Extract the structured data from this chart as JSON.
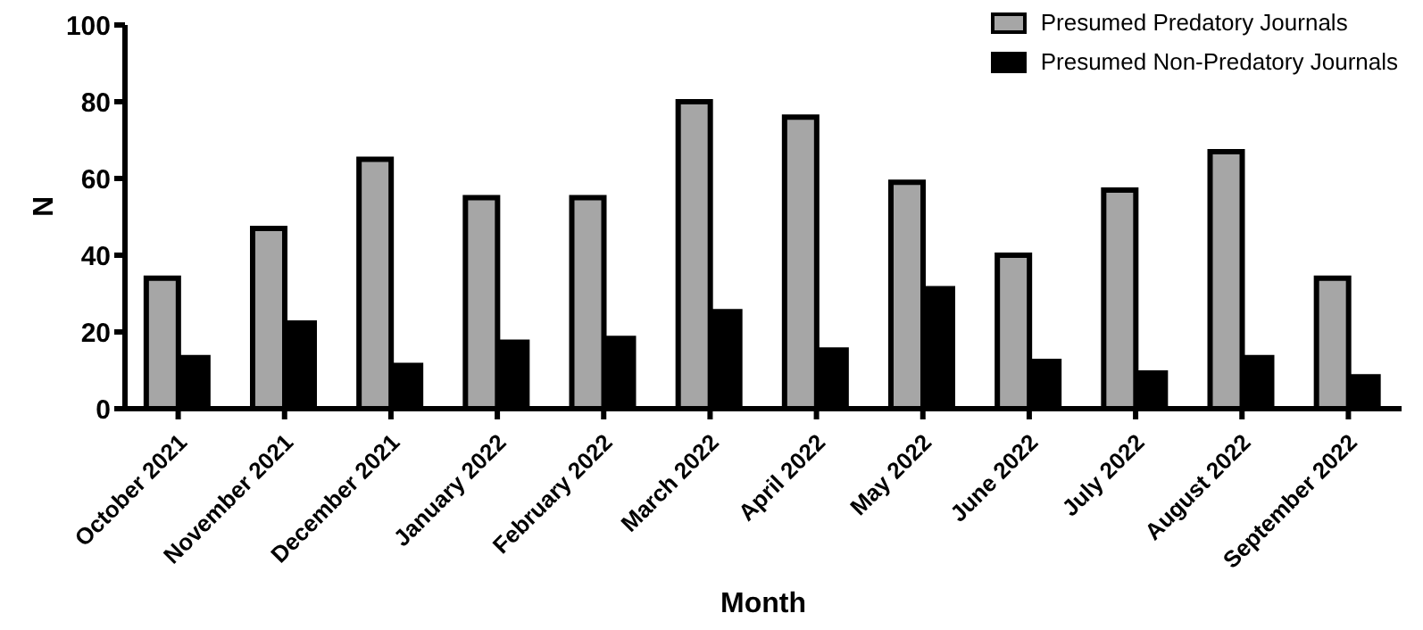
{
  "chart_data": {
    "type": "bar",
    "xlabel": "Month",
    "ylabel": "N",
    "categories": [
      "October 2021",
      "November 2021",
      "December 2021",
      "January 2022",
      "February 2022",
      "March 2022",
      "April 2022",
      "May 2022",
      "June 2022",
      "July 2022",
      "August 2022",
      "September 2022"
    ],
    "series": [
      {
        "name": "Presumed Predatory Journals",
        "color": "#a6a6a6",
        "values": [
          34,
          47,
          65,
          55,
          55,
          80,
          76,
          59,
          40,
          57,
          67,
          34
        ]
      },
      {
        "name": "Presumed Non-Predatory Journals",
        "color": "#000000",
        "values": [
          14,
          23,
          12,
          18,
          19,
          26,
          16,
          32,
          13,
          10,
          14,
          9
        ]
      }
    ],
    "ylim": [
      0,
      100
    ],
    "yticks": [
      0,
      20,
      40,
      60,
      80,
      100
    ],
    "grid": false,
    "legend": "top right"
  }
}
